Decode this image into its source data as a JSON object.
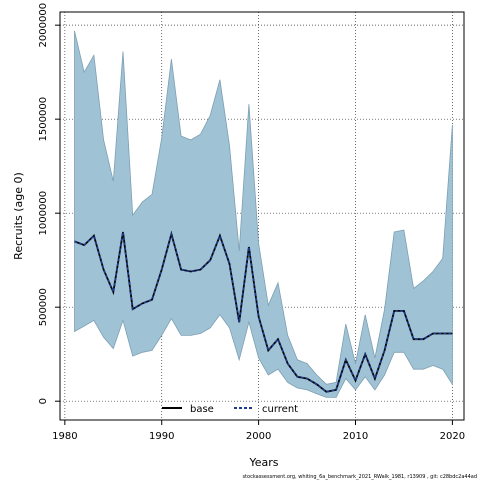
{
  "chart_data": {
    "type": "area",
    "xlabel": "Years",
    "ylabel": "Recruits (age 0)",
    "xlim": [
      1979.5,
      2021.2
    ],
    "ylim": [
      -100000,
      2070000
    ],
    "x_ticks": [
      1980,
      1990,
      2000,
      2010,
      2020
    ],
    "x_tick_labels": [
      "1980",
      "1990",
      "2000",
      "2010",
      "2020"
    ],
    "y_ticks": [
      0,
      500000,
      1000000,
      1500000,
      2000000
    ],
    "y_tick_labels": [
      "0",
      "500000",
      "1000000",
      "1500000",
      "2000000"
    ],
    "grid": true,
    "legend_position": "bottom-center",
    "x": [
      1981,
      1982,
      1983,
      1984,
      1985,
      1986,
      1987,
      1988,
      1989,
      1990,
      1991,
      1992,
      1993,
      1994,
      1995,
      1996,
      1997,
      1998,
      1999,
      2000,
      2001,
      2002,
      2003,
      2004,
      2005,
      2006,
      2007,
      2008,
      2009,
      2010,
      2011,
      2012,
      2013,
      2014,
      2015,
      2016,
      2017,
      2018,
      2019,
      2020
    ],
    "series": [
      {
        "name": "base",
        "style": "solid",
        "color": "#000000",
        "values": [
          850000,
          830000,
          880000,
          700000,
          580000,
          900000,
          490000,
          520000,
          540000,
          700000,
          890000,
          700000,
          690000,
          700000,
          750000,
          880000,
          730000,
          420000,
          820000,
          450000,
          270000,
          330000,
          200000,
          130000,
          120000,
          90000,
          50000,
          60000,
          220000,
          110000,
          250000,
          120000,
          270000,
          480000,
          480000,
          330000,
          330000,
          360000,
          360000,
          360000
        ]
      },
      {
        "name": "current",
        "style": "dotted",
        "color": "#1e3a8a",
        "values": [
          850000,
          830000,
          880000,
          700000,
          580000,
          900000,
          490000,
          520000,
          540000,
          700000,
          890000,
          700000,
          690000,
          700000,
          750000,
          880000,
          730000,
          420000,
          820000,
          450000,
          270000,
          330000,
          200000,
          130000,
          120000,
          90000,
          50000,
          60000,
          220000,
          110000,
          250000,
          120000,
          270000,
          480000,
          480000,
          330000,
          330000,
          360000,
          360000,
          360000
        ]
      }
    ],
    "band": {
      "color": "#9fc2d5",
      "upper": [
        1970000,
        1750000,
        1840000,
        1390000,
        1170000,
        1860000,
        990000,
        1060000,
        1100000,
        1400000,
        1820000,
        1410000,
        1390000,
        1420000,
        1520000,
        1710000,
        1360000,
        800000,
        1580000,
        840000,
        510000,
        630000,
        350000,
        220000,
        200000,
        140000,
        90000,
        100000,
        410000,
        200000,
        460000,
        230000,
        490000,
        900000,
        910000,
        600000,
        640000,
        690000,
        760000,
        1470000
      ],
      "lower": [
        370000,
        400000,
        430000,
        340000,
        280000,
        430000,
        240000,
        260000,
        270000,
        350000,
        440000,
        350000,
        350000,
        360000,
        390000,
        460000,
        390000,
        220000,
        420000,
        230000,
        140000,
        170000,
        100000,
        70000,
        60000,
        40000,
        20000,
        20000,
        120000,
        60000,
        130000,
        60000,
        140000,
        260000,
        260000,
        170000,
        170000,
        190000,
        170000,
        90000
      ]
    },
    "caption": "stockassessment.org,  whiting_6a_benchmark_2021_RWalk_1981,  r13909 ,  git: c28bdc2a44ad"
  }
}
